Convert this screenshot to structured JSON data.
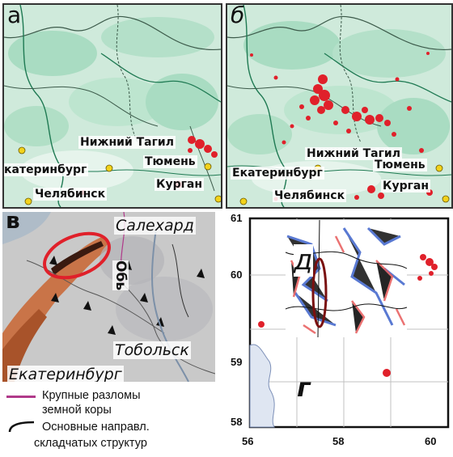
{
  "panels": {
    "a": {
      "letter": "а",
      "cities": [
        "Нижний Тагил",
        "Тюмень",
        "катеринбург",
        "Челябинск",
        "Курган"
      ]
    },
    "b": {
      "letter": "б",
      "cities": [
        "Нижний Тагил",
        "Тюмень",
        "Екатеринбург",
        "Челябинск",
        "Курган"
      ]
    },
    "v": {
      "letter": "в",
      "labels": {
        "salekhard": "Салехард",
        "ob": "Обь",
        "tobolsk": "Тобольск",
        "ekaterinburg": "Екатеринбург"
      },
      "legend": [
        {
          "text_line1": "Крупные разломы",
          "text_line2": "земной коры",
          "color": "#b03a8a"
        },
        {
          "text_line1": "Основные направл.",
          "text_line2": "складчатых структур",
          "color": "#111111"
        }
      ]
    },
    "g": {
      "letter": "г",
      "inset_letter": "д",
      "y_ticks": [
        "61",
        "60",
        "59",
        "58"
      ],
      "x_ticks": [
        "56",
        "58",
        "60"
      ]
    }
  },
  "colors": {
    "map_green": "#bfe3cf",
    "map_green_dark": "#7cc9a6",
    "point_red": "#e0202a",
    "city_yellow": "#f2d21b",
    "geology_gray": "#c6c6c6",
    "geology_orange": "#c96a3a",
    "ellipse_red": "#e0202a"
  }
}
